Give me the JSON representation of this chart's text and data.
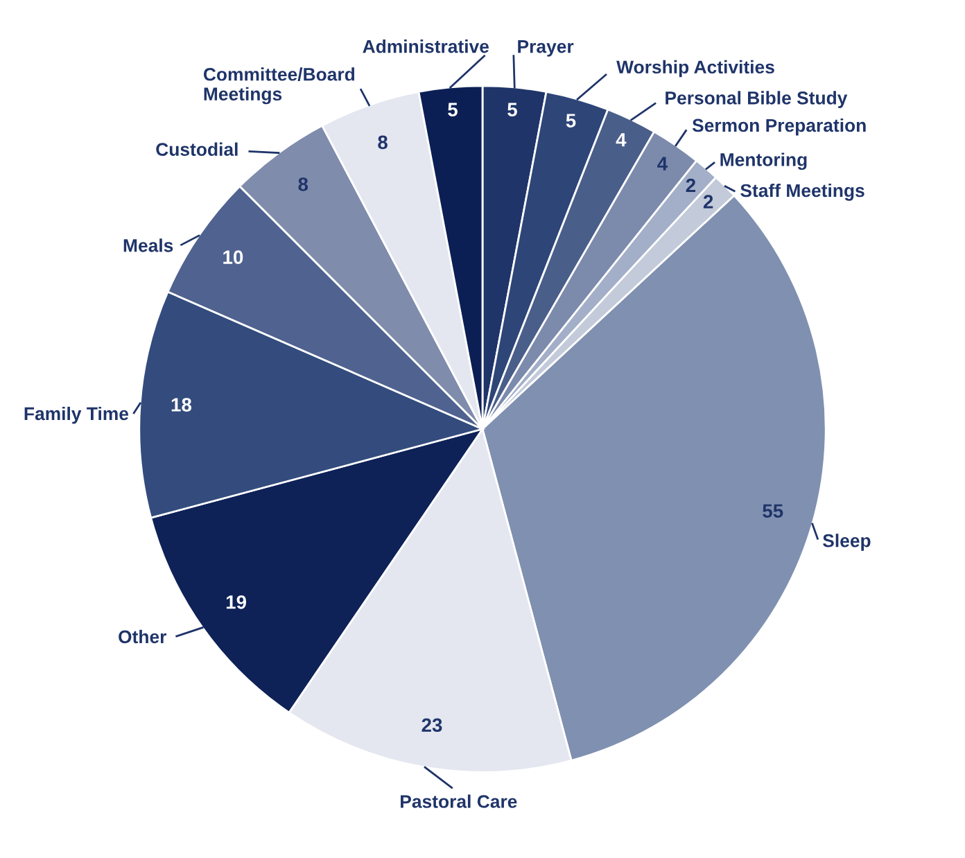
{
  "chart_data": {
    "type": "pie",
    "categories": [
      "Prayer",
      "Worship Activities",
      "Personal Bible Study",
      "Sermon Preparation",
      "Mentoring",
      "Staff Meetings",
      "Sleep",
      "Pastoral Care",
      "Other",
      "Family Time",
      "Meals",
      "Custodial",
      "Committee/Board\nMeetings",
      "Administrative"
    ],
    "values": [
      5,
      5,
      4,
      4,
      2,
      2,
      55,
      23,
      19,
      18,
      10,
      8,
      8,
      5
    ],
    "colors": [
      "#1f3469",
      "#2e4578",
      "#4a5e8a",
      "#7c8aac",
      "#a3aec8",
      "#c3cada",
      "#8090b0",
      "#e4e7f0",
      "#0e2258",
      "#334c7d",
      "#4f6290",
      "#7f8cac",
      "#e4e7f0",
      "#0c1f55"
    ],
    "data_labels": true
  }
}
